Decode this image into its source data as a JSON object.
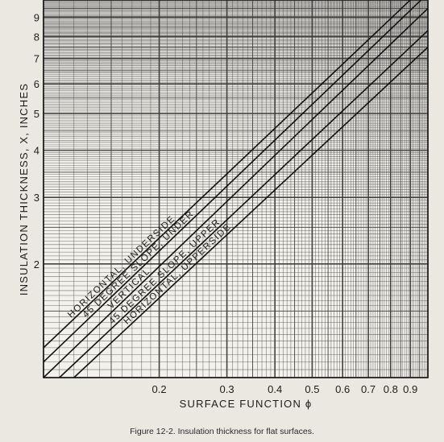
{
  "chart_data": {
    "type": "line",
    "caption": "Figure 12-2. Insulation thickness for flat surfaces.",
    "xlabel": "SURFACE FUNCTION ϕ",
    "ylabel": "INSULATION THICKNESS, X, INCHES",
    "x_scale": "log",
    "y_scale": "log",
    "xlim": [
      0.1,
      1.0
    ],
    "ylim": [
      1.0,
      10.0
    ],
    "grid": true,
    "x_ticks": [
      {
        "value": 0.2,
        "label": "0.2"
      },
      {
        "value": 0.3,
        "label": "0.3"
      },
      {
        "value": 0.4,
        "label": "0.4"
      },
      {
        "value": 0.5,
        "label": "0.5"
      },
      {
        "value": 0.6,
        "label": "0.6"
      },
      {
        "value": 0.7,
        "label": "0.7"
      },
      {
        "value": 0.8,
        "label": "0.8"
      },
      {
        "value": 0.9,
        "label": "0.9"
      }
    ],
    "y_ticks": [
      {
        "value": 2,
        "label": "2"
      },
      {
        "value": 3,
        "label": "3"
      },
      {
        "value": 4,
        "label": "4"
      },
      {
        "value": 5,
        "label": "5"
      },
      {
        "value": 6,
        "label": "6"
      },
      {
        "value": 7,
        "label": "7"
      },
      {
        "value": 8,
        "label": "8"
      },
      {
        "value": 9,
        "label": "9"
      }
    ],
    "series": [
      {
        "name": "HORIZONTAL, UNDERSIDE",
        "x": [
          0.1,
          0.9
        ],
        "y": [
          1.2,
          10.0
        ]
      },
      {
        "name": "45 DEGREE SLOPE, UNDER",
        "x": [
          0.1,
          0.96
        ],
        "y": [
          1.1,
          10.0
        ]
      },
      {
        "name": "VERTICAL",
        "x": [
          0.1,
          1.0
        ],
        "y": [
          1.0,
          9.5
        ]
      },
      {
        "name": "45 DEGREE SLOPE, UPPER",
        "x": [
          0.11,
          1.0
        ],
        "y": [
          1.0,
          8.3
        ]
      },
      {
        "name": "HORIZONTAL, UPPERSIDE",
        "x": [
          0.12,
          1.0
        ],
        "y": [
          1.0,
          7.5
        ]
      }
    ]
  }
}
